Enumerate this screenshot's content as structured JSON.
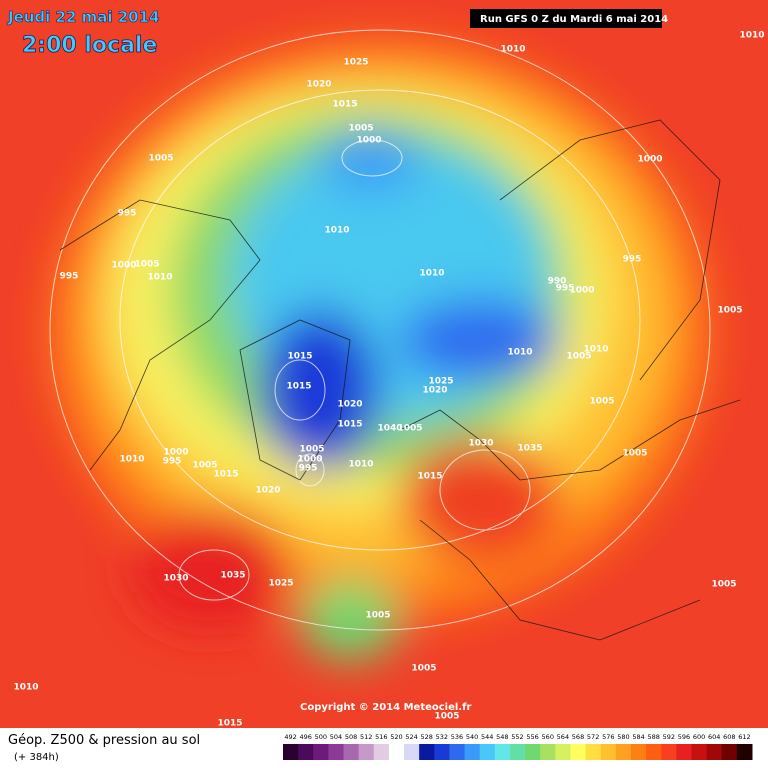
{
  "header": {
    "date": "Jeudi 22 mai 2014",
    "time": "2:00 locale",
    "run": "Run GFS 0 Z du Mardi 6 mai 2014"
  },
  "isobar_labels": [
    1010,
    1010,
    1025,
    1020,
    1015,
    1005,
    1000,
    1005,
    1000,
    995,
    1010,
    995,
    1000,
    1005,
    1010,
    1010,
    990,
    995,
    1000,
    995,
    1005,
    1015,
    1010,
    1005,
    1010,
    1025,
    1020,
    1015,
    1005,
    1020,
    1015,
    1040,
    1005,
    1030,
    1035,
    1005,
    1000,
    995,
    1010,
    1005,
    1015,
    1010,
    1000,
    995,
    1005,
    1015,
    1020,
    1030,
    1035,
    1025,
    1005,
    1005,
    1005,
    1010,
    1015,
    1005
  ],
  "copyright": "Copyright © 2014 Meteociel.fr",
  "legend": {
    "title": "Géop. Z500 & pression au sol",
    "subtitle": "(+ 384h)",
    "scale": [
      492,
      496,
      500,
      504,
      508,
      512,
      516,
      520,
      524,
      528,
      532,
      536,
      540,
      544,
      548,
      552,
      556,
      560,
      564,
      568,
      572,
      576,
      580,
      584,
      588,
      592,
      596,
      600,
      604,
      608,
      612
    ],
    "colors": [
      "#2a0030",
      "#4b0a5a",
      "#6e1a7c",
      "#8c3a96",
      "#a868b0",
      "#c69ac8",
      "#e2cce4",
      "#ffffff",
      "#d8d8f8",
      "#0a1aa0",
      "#1a3ad8",
      "#2e6af0",
      "#3a9af8",
      "#48c8f8",
      "#60e8e8",
      "#60e0a8",
      "#70d870",
      "#a8e060",
      "#d8f060",
      "#ffff60",
      "#ffe040",
      "#ffc030",
      "#ffa020",
      "#ff8010",
      "#ff6010",
      "#f84020",
      "#e82020",
      "#c81010",
      "#a00808",
      "#700000",
      "#200000"
    ]
  }
}
